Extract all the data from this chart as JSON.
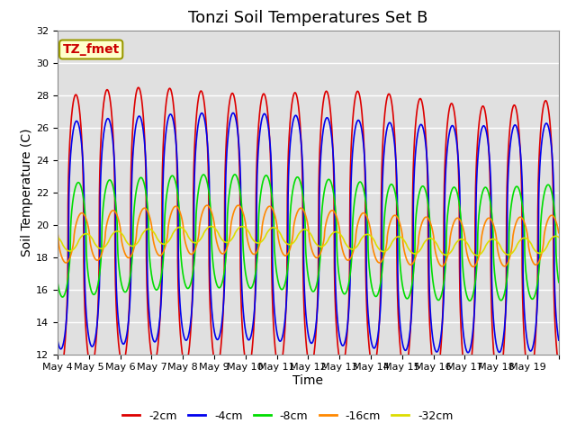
{
  "title": "Tonzi Soil Temperatures Set B",
  "xlabel": "Time",
  "ylabel": "Soil Temperature (C)",
  "ylim": [
    12,
    32
  ],
  "yticks": [
    12,
    14,
    16,
    18,
    20,
    22,
    24,
    26,
    28,
    30,
    32
  ],
  "xtick_labels": [
    "May 4",
    "May 5",
    "May 6",
    "May 7",
    "May 8",
    "May 9",
    "May 10",
    "May 11",
    "May 12",
    "May 13",
    "May 14",
    "May 15",
    "May 16",
    "May 17",
    "May 18",
    "May 19"
  ],
  "annotation_text": "TZ_fmet",
  "annotation_color": "#cc0000",
  "annotation_bg": "#ffffcc",
  "annotation_border": "#999900",
  "series": [
    {
      "label": "-2cm",
      "color": "#dd0000",
      "lw": 1.2
    },
    {
      "label": "-4cm",
      "color": "#0000ee",
      "lw": 1.2
    },
    {
      "label": "-8cm",
      "color": "#00dd00",
      "lw": 1.2
    },
    {
      "label": "-16cm",
      "color": "#ff8800",
      "lw": 1.2
    },
    {
      "label": "-32cm",
      "color": "#dddd00",
      "lw": 1.2
    }
  ],
  "bg_color": "#e0e0e0",
  "fig_bg": "#ffffff",
  "grid_color": "#ffffff",
  "title_fontsize": 13,
  "axis_label_fontsize": 10,
  "tick_fontsize": 8,
  "legend_fontsize": 9
}
